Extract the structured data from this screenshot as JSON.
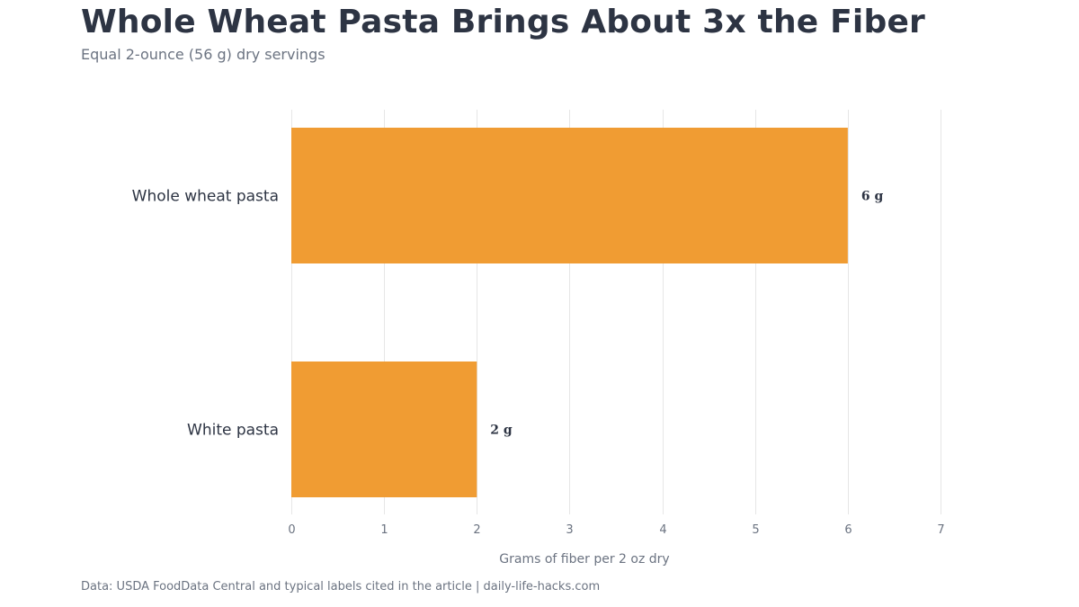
{
  "title": "Whole Wheat Pasta Brings About 3x the Fiber",
  "subtitle": "Equal 2-ounce (56 g) dry servings",
  "source": "Data: USDA FoodData Central and typical labels cited in the article | daily-life-hacks.com",
  "colors": {
    "bar": "#f09c33",
    "title": "#2d3443",
    "muted": "#6b7381",
    "grid": "#e6e6e6"
  },
  "chart_data": {
    "type": "bar",
    "orientation": "horizontal",
    "categories": [
      "Whole wheat pasta",
      "White pasta"
    ],
    "values": [
      6,
      2
    ],
    "value_labels": [
      "6 g",
      "2 g"
    ],
    "xlabel": "Grams of fiber per 2 oz dry",
    "ylabel": "",
    "xlim": [
      0,
      7
    ],
    "xticks": [
      "0",
      "1",
      "2",
      "3",
      "4",
      "5",
      "6",
      "7"
    ],
    "grid": true,
    "legend": "none"
  }
}
